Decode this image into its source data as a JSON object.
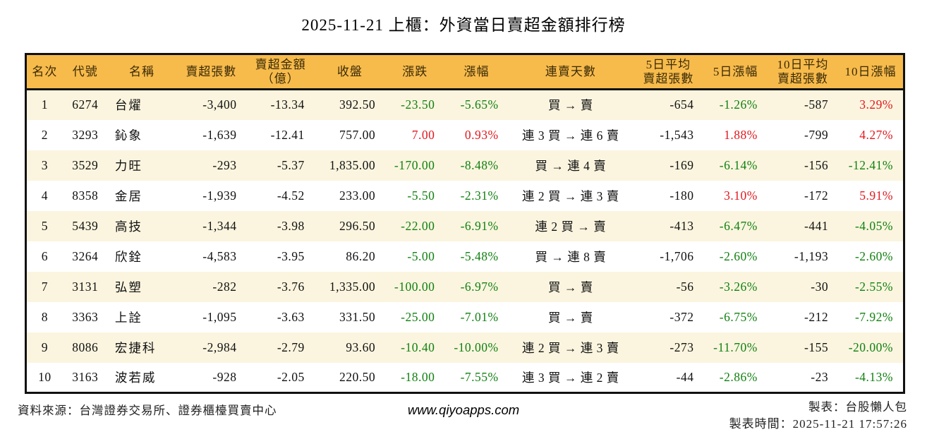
{
  "title": "2025-11-21 上櫃：外資當日賣超金額排行榜",
  "colors": {
    "header_bg": "#F7BB4C",
    "row_alt_bg": "#FBF5DF",
    "border": "#111111",
    "up_red": "#E1181F",
    "down_green": "#118111"
  },
  "table": {
    "headers": [
      "名次",
      "代號",
      "名稱",
      "賣超張數",
      "賣超金額\n（億）",
      "收盤",
      "漲跌",
      "漲幅",
      "連賣天數",
      "5日平均\n賣超張數",
      "5日漲幅",
      "10日平均\n賣超張數",
      "10日漲幅"
    ],
    "rows": [
      {
        "cells": [
          "1",
          "6274",
          "台燿",
          "-3,400",
          "-13.34",
          "392.50",
          "-23.50",
          "-5.65%",
          "買 → 賣",
          "-654",
          "-1.26%",
          "-587",
          "3.29%"
        ],
        "colors": {
          "6": "down",
          "7": "down",
          "10": "down",
          "12": "up"
        }
      },
      {
        "cells": [
          "2",
          "3293",
          "鈊象",
          "-1,639",
          "-12.41",
          "757.00",
          "7.00",
          "0.93%",
          "連 3 買 → 連 6 賣",
          "-1,543",
          "1.88%",
          "-799",
          "4.27%"
        ],
        "colors": {
          "6": "up",
          "7": "up",
          "10": "up",
          "12": "up"
        }
      },
      {
        "cells": [
          "3",
          "3529",
          "力旺",
          "-293",
          "-5.37",
          "1,835.00",
          "-170.00",
          "-8.48%",
          "買 → 連 4 賣",
          "-169",
          "-6.14%",
          "-156",
          "-12.41%"
        ],
        "colors": {
          "6": "down",
          "7": "down",
          "10": "down",
          "12": "down"
        }
      },
      {
        "cells": [
          "4",
          "8358",
          "金居",
          "-1,939",
          "-4.52",
          "233.00",
          "-5.50",
          "-2.31%",
          "連 2 買 → 連 3 賣",
          "-180",
          "3.10%",
          "-172",
          "5.91%"
        ],
        "colors": {
          "6": "down",
          "7": "down",
          "10": "up",
          "12": "up"
        }
      },
      {
        "cells": [
          "5",
          "5439",
          "高技",
          "-1,344",
          "-3.98",
          "296.50",
          "-22.00",
          "-6.91%",
          "連 2 買 → 賣",
          "-413",
          "-6.47%",
          "-441",
          "-4.05%"
        ],
        "colors": {
          "6": "down",
          "7": "down",
          "10": "down",
          "12": "down"
        }
      },
      {
        "cells": [
          "6",
          "3264",
          "欣銓",
          "-4,583",
          "-3.95",
          "86.20",
          "-5.00",
          "-5.48%",
          "買 → 連 8 賣",
          "-1,706",
          "-2.60%",
          "-1,193",
          "-2.60%"
        ],
        "colors": {
          "6": "down",
          "7": "down",
          "10": "down",
          "12": "down"
        }
      },
      {
        "cells": [
          "7",
          "3131",
          "弘塑",
          "-282",
          "-3.76",
          "1,335.00",
          "-100.00",
          "-6.97%",
          "買 → 賣",
          "-56",
          "-3.26%",
          "-30",
          "-2.55%"
        ],
        "colors": {
          "6": "down",
          "7": "down",
          "10": "down",
          "12": "down"
        }
      },
      {
        "cells": [
          "8",
          "3363",
          "上詮",
          "-1,095",
          "-3.63",
          "331.50",
          "-25.00",
          "-7.01%",
          "買 → 賣",
          "-372",
          "-6.75%",
          "-212",
          "-7.92%"
        ],
        "colors": {
          "6": "down",
          "7": "down",
          "10": "down",
          "12": "down"
        }
      },
      {
        "cells": [
          "9",
          "8086",
          "宏捷科",
          "-2,984",
          "-2.79",
          "93.60",
          "-10.40",
          "-10.00%",
          "連 2 買 → 連 3 賣",
          "-273",
          "-11.70%",
          "-155",
          "-20.00%"
        ],
        "colors": {
          "6": "down",
          "7": "down",
          "10": "down",
          "12": "down"
        }
      },
      {
        "cells": [
          "10",
          "3163",
          "波若威",
          "-928",
          "-2.05",
          "220.50",
          "-18.00",
          "-7.55%",
          "連 3 買 → 連 2 賣",
          "-44",
          "-2.86%",
          "-23",
          "-4.13%"
        ],
        "colors": {
          "6": "down",
          "7": "down",
          "10": "down",
          "12": "down"
        }
      }
    ]
  },
  "footer": {
    "source": "資料來源：台灣證券交易所、證券櫃檯買賣中心",
    "website": "www.qiyoapps.com",
    "maker": "製表：台股懶人包",
    "made_time": "製表時間：2025-11-21 17:57:26"
  }
}
